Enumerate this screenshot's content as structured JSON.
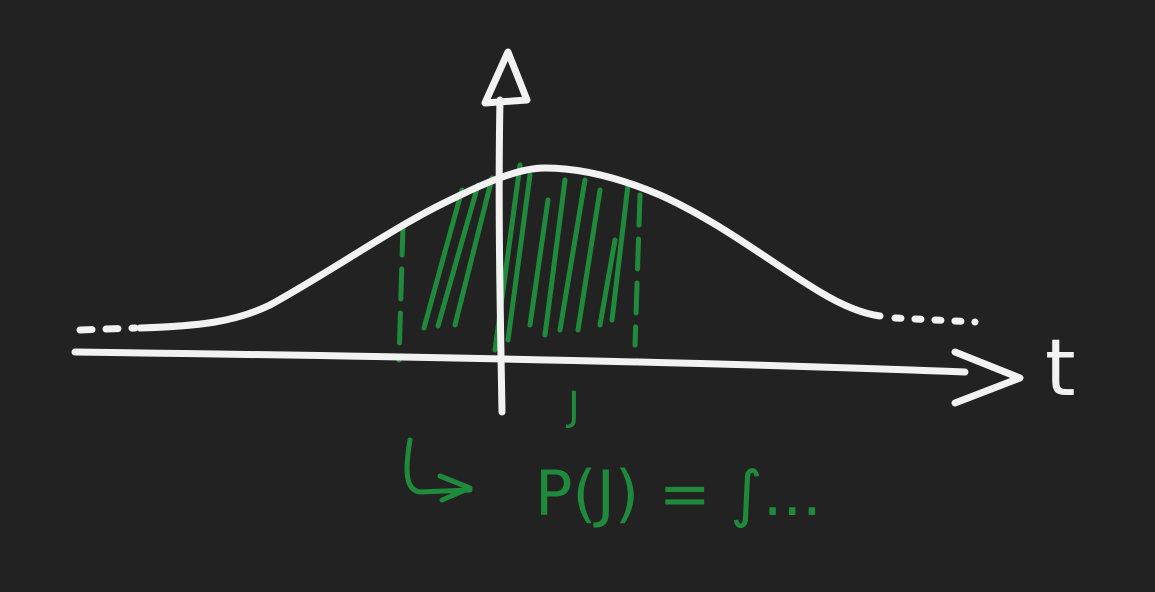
{
  "axis_label": "t",
  "interval_label": "J",
  "formula": "P(J) = ∫..."
}
